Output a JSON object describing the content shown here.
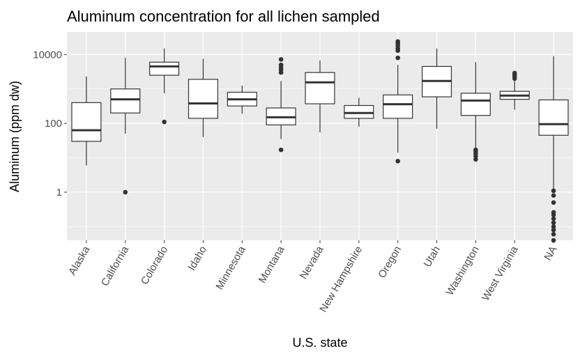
{
  "chart_data": {
    "type": "boxplot",
    "title": "Aluminum concentration for all lichen sampled",
    "xlabel": "U.S. state",
    "ylabel": "Aluminum (ppm dw)",
    "y_scale": "log10",
    "ylim": [
      0.04,
      45000
    ],
    "y_ticks": [
      {
        "value": 1,
        "label": "1"
      },
      {
        "value": 100,
        "label": "100"
      },
      {
        "value": 10000,
        "label": "10000"
      }
    ],
    "y_minor_ticks": [
      0.1,
      10,
      1000
    ],
    "grid": true,
    "background_color": "#ebebeb",
    "categories": [
      "Alaska",
      "California",
      "Colorado",
      "Idaho",
      "Minnesota",
      "Montana",
      "Nevada",
      "New Hampshire",
      "Oregon",
      "Utah",
      "Washington",
      "West Virginia",
      "NA"
    ],
    "boxes": [
      {
        "category": "Alaska",
        "whisker_low": 6,
        "q1": 30,
        "median": 63,
        "q3": 400,
        "whisker_high": 2300,
        "outliers": []
      },
      {
        "category": "California",
        "whisker_low": 50,
        "q1": 200,
        "median": 500,
        "q3": 1000,
        "whisker_high": 8000,
        "outliers": [
          1
        ]
      },
      {
        "category": "Colorado",
        "whisker_low": 750,
        "q1": 2500,
        "median": 4500,
        "q3": 6000,
        "whisker_high": 15000,
        "outliers": [
          110
        ]
      },
      {
        "category": "Idaho",
        "whisker_low": 40,
        "q1": 140,
        "median": 380,
        "q3": 1900,
        "whisker_high": 7500,
        "outliers": []
      },
      {
        "category": "Minnesota",
        "whisker_low": 190,
        "q1": 320,
        "median": 500,
        "q3": 800,
        "whisker_high": 1250,
        "outliers": []
      },
      {
        "category": "Montana",
        "whisker_low": 35,
        "q1": 90,
        "median": 150,
        "q3": 280,
        "whisker_high": 1700,
        "outliers": [
          17,
          3000,
          3600,
          4200,
          5000,
          7200
        ]
      },
      {
        "category": "Nevada",
        "whisker_low": 55,
        "q1": 370,
        "median": 1550,
        "q3": 3000,
        "whisker_high": 6800,
        "outliers": []
      },
      {
        "category": "New Hampshire",
        "whisker_low": 80,
        "q1": 140,
        "median": 200,
        "q3": 330,
        "whisker_high": 550,
        "outliers": []
      },
      {
        "category": "Oregon",
        "whisker_low": 14,
        "q1": 140,
        "median": 360,
        "q3": 670,
        "whisker_high": 5000,
        "outliers": [
          8,
          8000,
          13000,
          15000,
          18000,
          21000,
          24000
        ]
      },
      {
        "category": "Utah",
        "whisker_low": 70,
        "q1": 590,
        "median": 1700,
        "q3": 4500,
        "whisker_high": 15000,
        "outliers": []
      },
      {
        "category": "Washington",
        "whisker_low": 16,
        "q1": 170,
        "median": 460,
        "q3": 750,
        "whisker_high": 6000,
        "outliers": [
          9,
          11,
          13,
          15,
          17
        ]
      },
      {
        "category": "West Virginia",
        "whisker_low": 250,
        "q1": 500,
        "median": 640,
        "q3": 850,
        "whisker_high": 1800,
        "outliers": [
          2000,
          2300,
          2600,
          2900
        ]
      },
      {
        "category": "NA",
        "whisker_low": 1.2,
        "q1": 45,
        "median": 95,
        "q3": 480,
        "whisker_high": 9000,
        "outliers": [
          0.04,
          0.06,
          0.08,
          0.1,
          0.13,
          0.17,
          0.22,
          0.26,
          0.5,
          0.8,
          1.1
        ]
      }
    ]
  }
}
